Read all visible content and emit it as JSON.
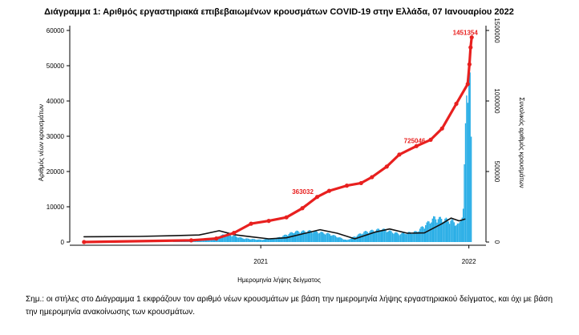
{
  "chart_data": {
    "type": "bar",
    "title": "Διάγραμμα 1: Αριθμός εργαστηριακά επιβεβαιωμένων κρουσμάτων COVID-19 στην Ελλάδα, 07 Ιανουαρίου 2022",
    "xlabel": "Ημερομηνία λήψης δείγματος",
    "ylabel_left": "Αριθμός νέων κρουσμάτων",
    "ylabel_right": "Συνολικός αριθμός κρουσμάτων",
    "x_ticks": [
      "2021",
      "2022"
    ],
    "y_left_ticks": [
      "0",
      "10000",
      "20000",
      "30000",
      "40000",
      "50000",
      "60000"
    ],
    "y_left_range": [
      0,
      60000
    ],
    "y_right_ticks": [
      "0",
      "500000",
      "1000000",
      "1500000"
    ],
    "y_right_range": [
      0,
      1500000
    ],
    "grid": false,
    "legend": "none",
    "colors": {
      "bars": "#29aee6",
      "cumulative": "#e8201f",
      "average": "#111111"
    },
    "series": [
      {
        "type": "bar",
        "axis": "left",
        "x": [
          "2020-08-01",
          "2020-09-01",
          "2020-10-01",
          "2020-11-01",
          "2020-12-01",
          "2021-01-01",
          "2021-02-01",
          "2021-03-01",
          "2021-04-01",
          "2021-05-01",
          "2021-06-01",
          "2021-07-01",
          "2021-08-01",
          "2021-09-01",
          "2021-10-01",
          "2021-11-01",
          "2021-12-01",
          "2021-12-15",
          "2021-12-22",
          "2021-12-28",
          "2022-01-02",
          "2022-01-05"
        ],
        "values": [
          100,
          250,
          600,
          2200,
          1000,
          600,
          1200,
          2800,
          3000,
          2200,
          500,
          2700,
          3500,
          2200,
          2800,
          6500,
          5800,
          4500,
          9000,
          40000,
          52000,
          26000
        ]
      },
      {
        "type": "line",
        "axis": "left",
        "x": [
          "2020-02-26",
          "2020-06-01",
          "2020-08-01",
          "2020-09-15",
          "2020-10-20",
          "2020-11-15",
          "2020-12-15",
          "2021-01-15",
          "2021-02-15",
          "2021-03-20",
          "2021-04-15",
          "2021-05-15",
          "2021-06-15",
          "2021-07-20",
          "2021-08-15",
          "2021-09-15",
          "2021-10-15",
          "2021-11-15",
          "2021-12-01",
          "2021-12-15",
          "2021-12-25"
        ],
        "values": [
          1500,
          1600,
          1800,
          2000,
          3200,
          2100,
          1500,
          900,
          1200,
          2500,
          3500,
          2500,
          900,
          2800,
          3700,
          2500,
          2600,
          5200,
          6800,
          6000,
          6500
        ]
      },
      {
        "type": "line",
        "axis": "right",
        "x": [
          "2020-02-26",
          "2020-09-01",
          "2020-10-15",
          "2020-11-15",
          "2020-12-15",
          "2021-01-15",
          "2021-02-15",
          "2021-03-15",
          "2021-04-10",
          "2021-05-01",
          "2021-06-01",
          "2021-06-26",
          "2021-07-15",
          "2021-08-10",
          "2021-09-01",
          "2021-10-01",
          "2021-10-26",
          "2021-11-15",
          "2021-12-10",
          "2021-12-30",
          "2022-01-02",
          "2022-01-04",
          "2022-01-06"
        ],
        "values": [
          0,
          12000,
          25000,
          65000,
          130000,
          150000,
          175000,
          240000,
          320000,
          363032,
          400000,
          418000,
          460000,
          535000,
          620000,
          680000,
          725000,
          805000,
          980000,
          1120000,
          1260000,
          1380000,
          1451354
        ]
      }
    ],
    "annotations": [
      {
        "x": "2021-04-10",
        "y": 363032,
        "text": "363032"
      },
      {
        "x": "2021-10-26",
        "y": 725000,
        "text": "725046"
      },
      {
        "x": "2022-01-06",
        "y": 1451354,
        "text": "1451354"
      }
    ]
  },
  "note": "Σημ.: οι στήλες στο Διάγραμμα 1 εκφράζουν τον αριθμό νέων κρουσμάτων με βάση την ημερομηνία λήψης εργαστηριακού δείγματος, και όχι με βάση την ημερομηνία ανακοίνωσης των κρουσμάτων."
}
